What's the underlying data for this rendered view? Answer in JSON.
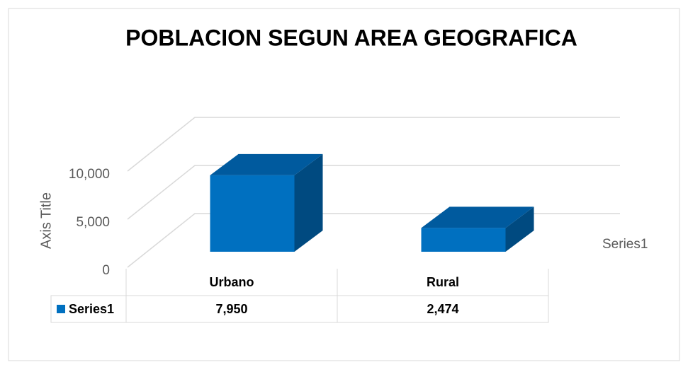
{
  "chart_data": {
    "type": "bar3d",
    "title": "POBLACION SEGUN AREA GEOGRAFICA",
    "y_label": "Axis Title",
    "depth_label": "Series1",
    "categories": [
      "Urbano",
      "Rural"
    ],
    "series": [
      {
        "name": "Series1",
        "color": "#0070c0",
        "values": [
          7950,
          2474
        ],
        "value_labels": [
          "7,950",
          "2,474"
        ]
      }
    ],
    "ylim": [
      0,
      10000
    ],
    "yticks": [
      0,
      {
        "value": 5000,
        "label": "5,000"
      },
      {
        "value": 10000,
        "label": "10,000"
      }
    ],
    "grid": true,
    "legend": "data-table"
  }
}
